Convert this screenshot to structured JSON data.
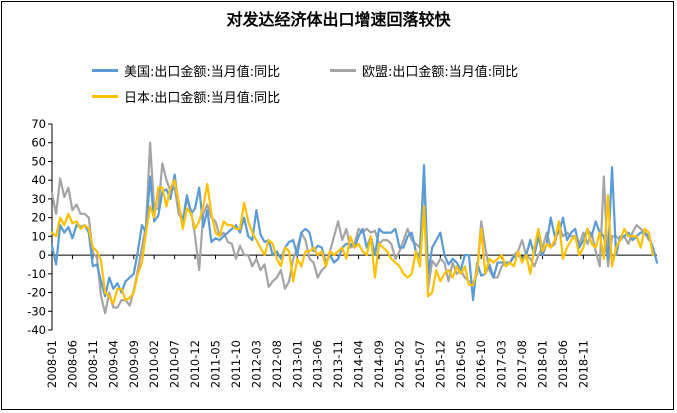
{
  "chart_data": {
    "type": "line",
    "title": "对发达经济体出口增速回落较快",
    "xlabel": "",
    "ylabel": "",
    "ylim": [
      -40,
      70
    ],
    "yticks": [
      70,
      60,
      50,
      40,
      30,
      20,
      10,
      0,
      -10,
      -20,
      -30,
      -40
    ],
    "start": "2008-01",
    "xtick_labels": [
      "2008-01",
      "2008-06",
      "2008-11",
      "2009-04",
      "2009-09",
      "2010-02",
      "2010-07",
      "2010-12",
      "2011-05",
      "2011-10",
      "2012-03",
      "2012-08",
      "2013-01",
      "2013-06",
      "2013-11",
      "2014-04",
      "2014-09",
      "2015-02",
      "2015-07",
      "2015-12",
      "2016-05",
      "2016-10",
      "2017-03",
      "2017-08",
      "2018-01",
      "2018-06",
      "2018-11"
    ],
    "grid": false,
    "legend_position": "top",
    "series": [
      {
        "name": "美国:出口金额:当月值:同比",
        "color": "#5b9bd5",
        "values": [
          5,
          -5,
          16,
          12,
          15,
          9,
          16,
          15,
          16,
          12,
          -6,
          -5,
          -14,
          -22,
          -12,
          -18,
          -15,
          -20,
          -14,
          -12,
          -10,
          2,
          16,
          12,
          42,
          18,
          21,
          34,
          35,
          30,
          43,
          26,
          18,
          32,
          22,
          25,
          36,
          15,
          24,
          7,
          9,
          8,
          10,
          12,
          14,
          16,
          12,
          20,
          10,
          8,
          24,
          11,
          7,
          8,
          0,
          2,
          -2,
          4,
          7,
          8,
          0,
          12,
          14,
          12,
          2,
          5,
          4,
          -4,
          0,
          -4,
          -2,
          4,
          6,
          6,
          4,
          10,
          14,
          4,
          10,
          0,
          14,
          12,
          12,
          12,
          14,
          4,
          4,
          10,
          12,
          2,
          -1,
          48,
          -10,
          4,
          8,
          12,
          0,
          -5,
          -2,
          -4,
          -8,
          0,
          0,
          -24,
          -4,
          -11,
          -10,
          -5,
          -12,
          -4,
          -4,
          -4,
          -4,
          -1,
          0,
          -2,
          0,
          8,
          0,
          10,
          0,
          6,
          20,
          10,
          12,
          20,
          8,
          12,
          14,
          4,
          8,
          14,
          10,
          18,
          12,
          10,
          -2,
          47,
          0,
          10,
          10,
          12,
          8,
          10,
          12,
          12,
          10,
          4,
          -4
        ],
        "note": "values approximate"
      },
      {
        "name": "欧盟:出口金额:当月值:同比",
        "color": "#a5a5a5",
        "values": [
          33,
          22,
          41,
          31,
          36,
          24,
          27,
          22,
          22,
          20,
          1,
          -1,
          -22,
          -31,
          -20,
          -28,
          -28,
          -24,
          -24,
          -27,
          -19,
          -8,
          4,
          16,
          60,
          24,
          25,
          49,
          40,
          34,
          36,
          22,
          18,
          30,
          24,
          10,
          -8,
          22,
          27,
          20,
          18,
          10,
          12,
          7,
          6,
          -2,
          5,
          0,
          0,
          -6,
          -2,
          -8,
          -5,
          -17,
          -14,
          -12,
          -8,
          -18,
          -14,
          -2,
          4,
          12,
          8,
          -2,
          -4,
          -12,
          -8,
          -6,
          2,
          10,
          18,
          8,
          14,
          4,
          6,
          14,
          12,
          14,
          12,
          13,
          6,
          8,
          8,
          6,
          -2,
          2,
          8,
          14,
          8,
          6,
          4,
          42,
          -18,
          -3,
          -6,
          -2,
          -4,
          -14,
          -4,
          -10,
          -8,
          -12,
          -14,
          -15,
          -10,
          18,
          4,
          -8,
          -12,
          -12,
          -6,
          -4,
          -4,
          0,
          2,
          8,
          0,
          -2,
          -6,
          0,
          4,
          12,
          4,
          6,
          16,
          10,
          12,
          10,
          10,
          6,
          12,
          6,
          12,
          2,
          -6,
          42,
          -6,
          10,
          10,
          8,
          10,
          6,
          12,
          16,
          14,
          12,
          8
        ],
        "note": "values approximate"
      },
      {
        "name": "日本:出口金额:当月值:同比",
        "color": "#ffc000",
        "values": [
          12,
          10,
          20,
          16,
          22,
          17,
          18,
          14,
          16,
          14,
          4,
          2,
          -3,
          -20,
          -22,
          -26,
          -18,
          -18,
          -24,
          -23,
          -20,
          -10,
          -4,
          12,
          26,
          20,
          36,
          36,
          26,
          36,
          40,
          28,
          14,
          25,
          22,
          14,
          18,
          26,
          38,
          22,
          12,
          10,
          18,
          16,
          16,
          14,
          14,
          28,
          18,
          12,
          8,
          4,
          0,
          8,
          6,
          -2,
          -6,
          4,
          2,
          -14,
          -2,
          -6,
          2,
          2,
          4,
          0,
          2,
          -6,
          2,
          0,
          2,
          4,
          -2,
          10,
          4,
          6,
          2,
          0,
          10,
          -12,
          6,
          4,
          2,
          -2,
          -4,
          -6,
          -10,
          -12,
          -10,
          2,
          -6,
          26,
          -22,
          -20,
          -8,
          -14,
          -10,
          -8,
          -12,
          -6,
          -10,
          -6,
          -16,
          -16,
          -8,
          14,
          -10,
          -2,
          -4,
          -2,
          0,
          -6,
          -4,
          -6,
          2,
          -4,
          0,
          -10,
          4,
          14,
          2,
          6,
          4,
          8,
          18,
          -2,
          4,
          8,
          10,
          0,
          4,
          14,
          6,
          4,
          12,
          -2,
          32,
          -6,
          4,
          8,
          14,
          10,
          10,
          10,
          4,
          14,
          12,
          0
        ],
        "note": "values approximate"
      }
    ]
  }
}
